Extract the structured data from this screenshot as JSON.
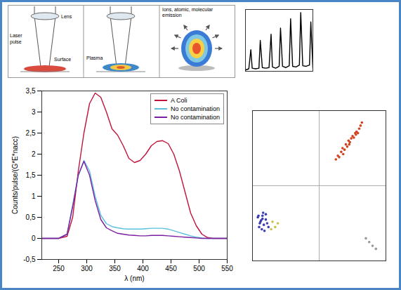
{
  "diagram": {
    "panels": [
      {
        "lens": "Lens",
        "beam": "Laser pulse",
        "surface": "Surface"
      },
      {
        "plasma": "Plasma"
      },
      {
        "title": "Ions, atomic, molecular emission"
      }
    ]
  },
  "chart_data": [
    {
      "type": "line",
      "tick_labels": false,
      "xlim": [
        0,
        100
      ],
      "ylim": [
        0,
        1
      ],
      "x": [
        0,
        5,
        8,
        10,
        15,
        20,
        22,
        25,
        30,
        35,
        38,
        40,
        45,
        50,
        52,
        55,
        60,
        65,
        67,
        70,
        75,
        80,
        82,
        85,
        90,
        95,
        97,
        100
      ],
      "series": [
        {
          "color": "#000000",
          "values": [
            0.02,
            0.04,
            0.35,
            0.05,
            0.04,
            0.05,
            0.5,
            0.06,
            0.05,
            0.06,
            0.6,
            0.07,
            0.05,
            0.08,
            0.7,
            0.08,
            0.06,
            0.09,
            0.85,
            0.08,
            0.07,
            0.1,
            0.95,
            0.09,
            0.08,
            0.1,
            0.8,
            0.05
          ]
        }
      ]
    },
    {
      "type": "line",
      "x_label": "λ (nm)",
      "y_label": "Counts/pulse/(G*E*nacc)",
      "xlim": [
        220,
        550
      ],
      "ylim": [
        -0.5,
        3.5
      ],
      "xticks": [
        250,
        300,
        350,
        400,
        450,
        500,
        550
      ],
      "yticks": [
        {
          "value": -0.5,
          "label": "-0,5"
        },
        0,
        {
          "value": 0.5,
          "label": "0,5"
        },
        1,
        {
          "value": 1.5,
          "label": "1,5"
        },
        2,
        {
          "value": 2.5,
          "label": "2,5"
        },
        3,
        {
          "value": 3.5,
          "label": "3,5"
        }
      ],
      "legend": "top-right",
      "x": [
        220,
        250,
        265,
        275,
        285,
        295,
        305,
        315,
        325,
        335,
        345,
        355,
        365,
        375,
        385,
        395,
        405,
        415,
        425,
        435,
        445,
        455,
        465,
        475,
        485,
        495,
        505,
        515,
        525,
        550
      ],
      "series": [
        {
          "name": "A Coli",
          "color": "#c0143c",
          "values": [
            0,
            0,
            0.05,
            0.5,
            1.6,
            2.5,
            3.2,
            3.45,
            3.35,
            3.0,
            2.6,
            2.45,
            2.2,
            1.9,
            1.8,
            1.85,
            2.0,
            2.2,
            2.3,
            2.32,
            2.25,
            2.0,
            1.6,
            1.1,
            0.6,
            0.3,
            0.1,
            0.02,
            0,
            0
          ]
        },
        {
          "name": "No contamination",
          "color": "#5bc0de",
          "values": [
            0,
            0,
            0.1,
            0.8,
            1.5,
            1.85,
            1.6,
            1.0,
            0.55,
            0.35,
            0.28,
            0.25,
            0.23,
            0.22,
            0.22,
            0.22,
            0.23,
            0.24,
            0.24,
            0.24,
            0.22,
            0.18,
            0.14,
            0.1,
            0.06,
            0.03,
            0.01,
            0,
            0,
            0
          ]
        },
        {
          "name": "No contamination",
          "color": "#7b1fa2",
          "values": [
            0,
            0,
            0.1,
            0.75,
            1.5,
            1.83,
            1.5,
            0.9,
            0.45,
            0.25,
            0.18,
            0.12,
            0.1,
            0.08,
            0.07,
            0.06,
            0.06,
            0.07,
            0.07,
            0.07,
            0.06,
            0.05,
            0.04,
            0.03,
            0.02,
            0.01,
            0,
            0,
            0,
            0
          ]
        }
      ]
    },
    {
      "type": "scatter",
      "tick_labels": false,
      "grid": true,
      "xlim": [
        -1,
        1
      ],
      "ylim": [
        -1,
        1
      ],
      "xticks": [
        0
      ],
      "yticks": [
        0
      ],
      "series": [
        {
          "color": "#3b3bb5",
          "x": [
            -0.92,
            -0.88,
            -0.85,
            -0.83,
            -0.9,
            -0.8,
            -0.86,
            -0.78,
            -0.84,
            -0.87,
            -0.82,
            -0.89,
            -0.8,
            -0.76,
            -0.85,
            -0.91
          ],
          "y": [
            -0.42,
            -0.48,
            -0.4,
            -0.52,
            -0.55,
            -0.45,
            -0.58,
            -0.5,
            -0.36,
            -0.46,
            -0.6,
            -0.5,
            -0.38,
            -0.55,
            -0.44,
            -0.4
          ]
        },
        {
          "color": "#c9c24a",
          "x": [
            -0.7,
            -0.66,
            -0.72,
            -0.62
          ],
          "y": [
            -0.48,
            -0.55,
            -0.58,
            -0.5
          ]
        },
        {
          "color": "#d2421e",
          "x": [
            0.25,
            0.28,
            0.3,
            0.33,
            0.35,
            0.38,
            0.4,
            0.42,
            0.44,
            0.46,
            0.48,
            0.5,
            0.52,
            0.54,
            0.56,
            0.58,
            0.6,
            0.62,
            0.64,
            0.36,
            0.45,
            0.55
          ],
          "y": [
            0.35,
            0.4,
            0.38,
            0.45,
            0.5,
            0.48,
            0.55,
            0.52,
            0.6,
            0.58,
            0.63,
            0.66,
            0.64,
            0.7,
            0.72,
            0.7,
            0.76,
            0.8,
            0.84,
            0.42,
            0.55,
            0.68
          ]
        },
        {
          "color": "#999999",
          "x": [
            0.7,
            0.75,
            0.8,
            0.85
          ],
          "y": [
            -0.7,
            -0.75,
            -0.8,
            -0.84
          ]
        }
      ]
    }
  ]
}
